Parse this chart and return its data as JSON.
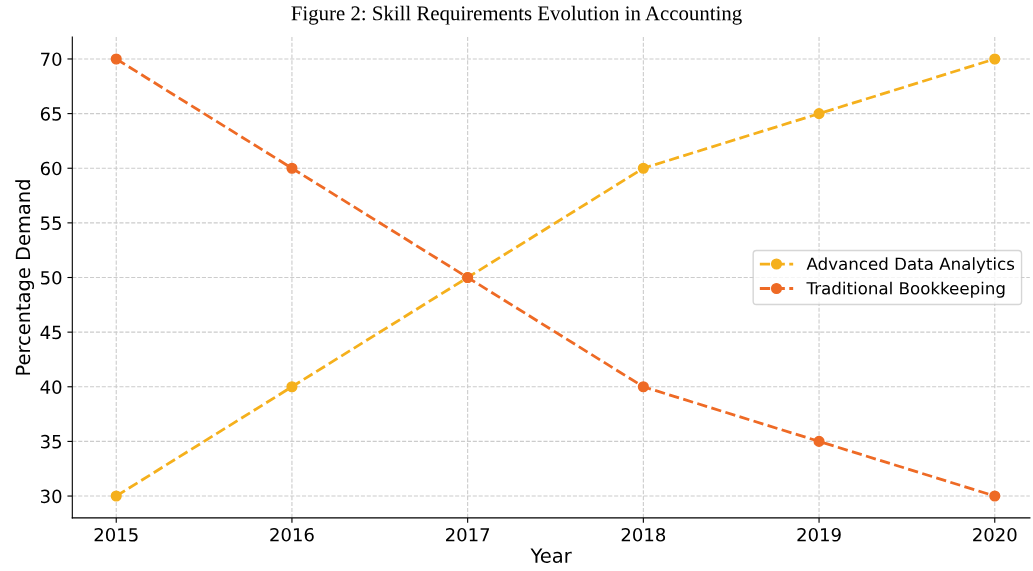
{
  "chart_data": {
    "type": "line",
    "title": "Figure 2: Skill Requirements Evolution in Accounting",
    "xlabel": "Year",
    "ylabel": "Percentage Demand",
    "x": [
      2015,
      2016,
      2017,
      2018,
      2019,
      2020
    ],
    "series": [
      {
        "name": "Advanced Data Analytics",
        "color": "#f5b01c",
        "values": [
          30,
          40,
          50,
          60,
          65,
          70
        ]
      },
      {
        "name": "Traditional Bookkeeping",
        "color": "#ee6a25",
        "values": [
          70,
          60,
          50,
          40,
          35,
          30
        ]
      }
    ],
    "xlim": [
      2014.75,
      2020.2
    ],
    "xticks": [
      2015,
      2016,
      2017,
      2018,
      2019,
      2020
    ],
    "ylim": [
      28,
      72
    ],
    "yticks": [
      30,
      35,
      40,
      45,
      50,
      55,
      60,
      65,
      70
    ],
    "grid": true,
    "legend": "right",
    "marker": "circle",
    "line_style": "dashed"
  }
}
